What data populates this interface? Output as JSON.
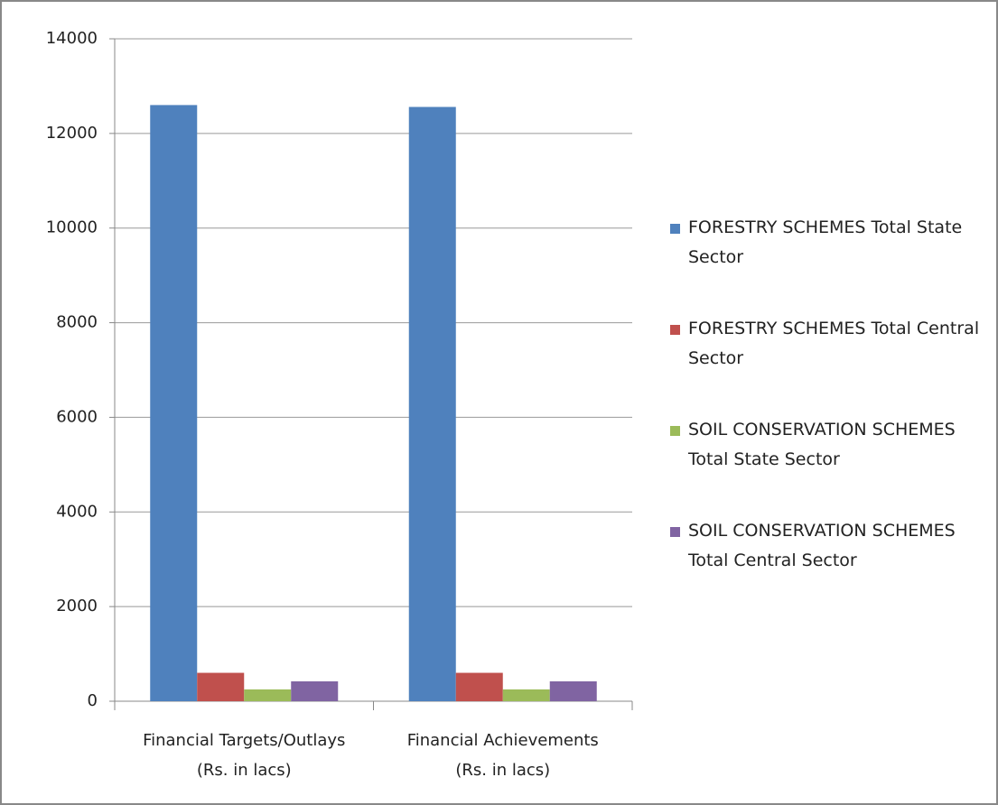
{
  "chart_data": {
    "type": "bar",
    "categories": [
      "Financial Targets/Outlays\n(Rs. in lacs)",
      "Financial Achievements\n(Rs. in lacs)"
    ],
    "series": [
      {
        "name": "FORESTRY SCHEMES Total State Sector",
        "color": "#4f81bd",
        "values": [
          12600,
          12560
        ]
      },
      {
        "name": "FORESTRY SCHEMES Total Central Sector",
        "color": "#c0504d",
        "values": [
          600,
          600
        ]
      },
      {
        "name": "SOIL CONSERVATION SCHEMES Total State Sector",
        "color": "#9bbb59",
        "values": [
          250,
          250
        ]
      },
      {
        "name": "SOIL CONSERVATION SCHEMES Total Central Sector",
        "color": "#8064a2",
        "values": [
          420,
          420
        ]
      }
    ],
    "ylim": [
      0,
      14000
    ],
    "yticks": [
      0,
      2000,
      4000,
      6000,
      8000,
      10000,
      12000,
      14000
    ],
    "grid": true,
    "legend": "right"
  }
}
